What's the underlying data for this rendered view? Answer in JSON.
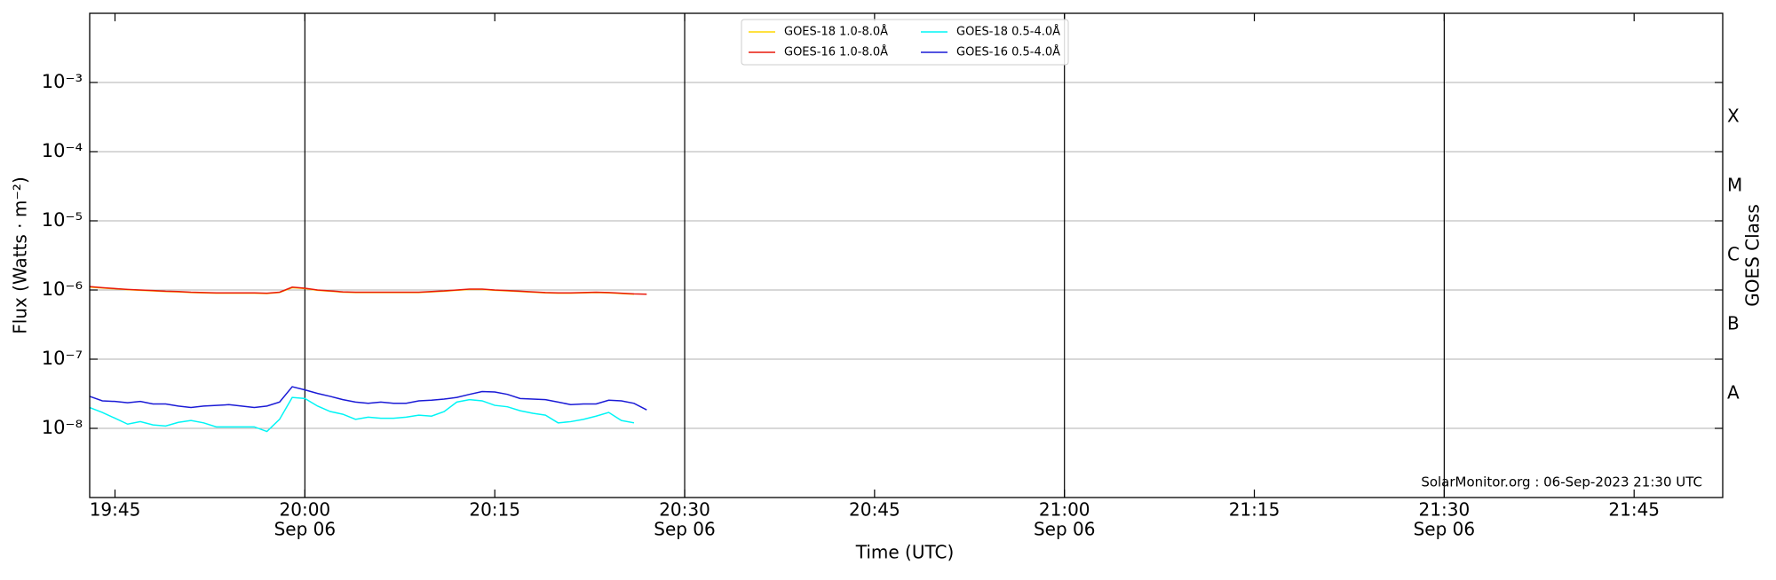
{
  "chart_data": {
    "type": "line",
    "x_label": "Time (UTC)",
    "y_label": "Flux (Watts · m⁻²)",
    "y2_label": "GOES Class",
    "annotation": "SolarMonitor.org : 06-Sep-2023 21:30 UTC",
    "x": [
      "19:43",
      "19:44",
      "19:45",
      "19:46",
      "19:47",
      "19:48",
      "19:49",
      "19:50",
      "19:51",
      "19:52",
      "19:53",
      "19:54",
      "19:55",
      "19:56",
      "19:57",
      "19:58",
      "19:59",
      "20:00",
      "20:01",
      "20:02",
      "20:03",
      "20:04",
      "20:05",
      "20:06",
      "20:07",
      "20:08",
      "20:09",
      "20:10",
      "20:11",
      "20:12",
      "20:13",
      "20:14",
      "20:15",
      "20:16",
      "20:17",
      "20:18",
      "20:19",
      "20:20",
      "20:21",
      "20:22",
      "20:23",
      "20:24",
      "20:25",
      "20:26",
      "20:27"
    ],
    "series": [
      {
        "name": "GOES-18 1.0-8.0Å",
        "color": "#ffd700",
        "values": [
          1.1e-06,
          1.07e-06,
          1.04e-06,
          1.01e-06,
          9.9e-07,
          9.7e-07,
          9.5e-07,
          9.4e-07,
          9.2e-07,
          9.1e-07,
          9e-07,
          9e-07,
          9e-07,
          9e-07,
          8.9e-07,
          9.2e-07,
          1.08e-06,
          1.05e-06,
          9.9e-07,
          9.6e-07,
          9.3e-07,
          9.2e-07,
          9.2e-07,
          9.2e-07,
          9.2e-07,
          9.2e-07,
          9.2e-07,
          9.4e-07,
          9.6e-07,
          9.9e-07,
          1.02e-06,
          1.02e-06,
          9.9e-07,
          9.7e-07,
          9.5e-07,
          9.3e-07,
          9.1e-07,
          9e-07,
          9e-07,
          9.1e-07,
          9.2e-07,
          9.1e-07,
          8.9e-07,
          8.7e-07,
          null
        ]
      },
      {
        "name": "GOES-16 1.0-8.0Å",
        "color": "#e8190c",
        "values": [
          1.12e-06,
          1.08e-06,
          1.05e-06,
          1.02e-06,
          1e-06,
          9.8e-07,
          9.6e-07,
          9.5e-07,
          9.3e-07,
          9.2e-07,
          9.1e-07,
          9.1e-07,
          9.1e-07,
          9.1e-07,
          9e-07,
          9.3e-07,
          1.1e-06,
          1.06e-06,
          1e-06,
          9.7e-07,
          9.4e-07,
          9.3e-07,
          9.3e-07,
          9.3e-07,
          9.3e-07,
          9.3e-07,
          9.3e-07,
          9.5e-07,
          9.7e-07,
          1e-06,
          1.03e-06,
          1.03e-06,
          1e-06,
          9.8e-07,
          9.6e-07,
          9.4e-07,
          9.2e-07,
          9.1e-07,
          9.1e-07,
          9.2e-07,
          9.3e-07,
          9.2e-07,
          9e-07,
          8.8e-07,
          8.7e-07
        ]
      },
      {
        "name": "GOES-18 0.5-4.0Å",
        "color": "#00f5f5",
        "values": [
          2e-08,
          1.7e-08,
          1.4e-08,
          1.15e-08,
          1.25e-08,
          1.12e-08,
          1.08e-08,
          1.22e-08,
          1.3e-08,
          1.2e-08,
          1.05e-08,
          1.05e-08,
          1.05e-08,
          1.05e-08,
          9e-09,
          1.35e-08,
          2.8e-08,
          2.7e-08,
          2.1e-08,
          1.75e-08,
          1.6e-08,
          1.35e-08,
          1.45e-08,
          1.4e-08,
          1.4e-08,
          1.45e-08,
          1.55e-08,
          1.5e-08,
          1.75e-08,
          2.4e-08,
          2.6e-08,
          2.5e-08,
          2.15e-08,
          2.05e-08,
          1.8e-08,
          1.65e-08,
          1.55e-08,
          1.2e-08,
          1.25e-08,
          1.35e-08,
          1.5e-08,
          1.7e-08,
          1.3e-08,
          1.2e-08,
          null
        ]
      },
      {
        "name": "GOES-16 0.5-4.0Å",
        "color": "#1a1ad6",
        "values": [
          2.9e-08,
          2.5e-08,
          2.45e-08,
          2.35e-08,
          2.45e-08,
          2.25e-08,
          2.25e-08,
          2.1e-08,
          2e-08,
          2.1e-08,
          2.15e-08,
          2.2e-08,
          2.1e-08,
          2e-08,
          2.1e-08,
          2.4e-08,
          4e-08,
          3.6e-08,
          3.2e-08,
          2.9e-08,
          2.6e-08,
          2.4e-08,
          2.3e-08,
          2.4e-08,
          2.3e-08,
          2.3e-08,
          2.5e-08,
          2.55e-08,
          2.65e-08,
          2.8e-08,
          3.1e-08,
          3.4e-08,
          3.35e-08,
          3.1e-08,
          2.7e-08,
          2.65e-08,
          2.6e-08,
          2.4e-08,
          2.2e-08,
          2.25e-08,
          2.25e-08,
          2.55e-08,
          2.5e-08,
          2.3e-08,
          1.85e-08
        ]
      }
    ],
    "xlim": [
      "19:43",
      "21:52"
    ],
    "xticks": [
      {
        "value": "19:45",
        "label": [
          "19:45"
        ]
      },
      {
        "value": "20:00",
        "label": [
          "20:00",
          "Sep 06"
        ]
      },
      {
        "value": "20:15",
        "label": [
          "20:15"
        ]
      },
      {
        "value": "20:30",
        "label": [
          "20:30",
          "Sep 06"
        ]
      },
      {
        "value": "20:45",
        "label": [
          "20:45"
        ]
      },
      {
        "value": "21:00",
        "label": [
          "21:00",
          "Sep 06"
        ]
      },
      {
        "value": "21:15",
        "label": [
          "21:15"
        ]
      },
      {
        "value": "21:30",
        "label": [
          "21:30",
          "Sep 06"
        ]
      },
      {
        "value": "21:45",
        "label": [
          "21:45"
        ]
      }
    ],
    "xgrid": [
      "20:00",
      "20:30",
      "21:00",
      "21:30"
    ],
    "ylim": [
      1e-09,
      0.01
    ],
    "ylog": true,
    "yticks": [
      {
        "value": 1e-08,
        "label": "10⁻⁸"
      },
      {
        "value": 1e-07,
        "label": "10⁻⁷"
      },
      {
        "value": 1e-06,
        "label": "10⁻⁶"
      },
      {
        "value": 1e-05,
        "label": "10⁻⁵"
      },
      {
        "value": 0.0001,
        "label": "10⁻⁴"
      },
      {
        "value": 0.001,
        "label": "10⁻³"
      }
    ],
    "y2lim": [
      1e-09,
      0.01
    ],
    "y2ticks": [
      {
        "value": 3.162e-08,
        "label": "A"
      },
      {
        "value": 3.162e-07,
        "label": "B"
      },
      {
        "value": 3.162e-06,
        "label": "C"
      },
      {
        "value": 3.162e-05,
        "label": "M"
      },
      {
        "value": 0.0003162,
        "label": "X"
      }
    ],
    "grid": true,
    "legend": "top-center"
  }
}
